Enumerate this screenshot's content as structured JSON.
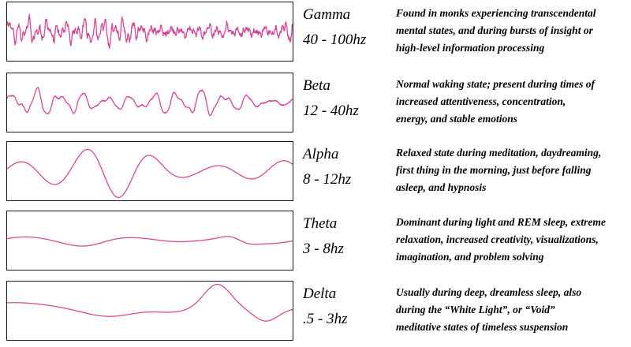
{
  "bands": [
    {
      "name": "Gamma",
      "range": "40 - 100hz",
      "description": [
        "Found in monks experiencing transcendental",
        "mental states, and during bursts of insight or",
        "high-level information processing"
      ]
    },
    {
      "name": "Beta",
      "range": "12 - 40hz",
      "description": [
        "Normal waking state; present during times of",
        "increased attentiveness, concentration,",
        "energy, and stable emotions"
      ]
    },
    {
      "name": "Alpha",
      "range": "8 - 12hz",
      "description": [
        "Relaxed state during meditation, daydreaming,",
        "first thing in the morning, just before falling",
        "asleep, and hypnosis"
      ]
    },
    {
      "name": "Theta",
      "range": "3 - 8hz",
      "description": [
        "Dominant during light and REM sleep, extreme",
        "relaxation, increased creativity, visualizations,",
        "imagination, and problem solving"
      ]
    },
    {
      "name": "Delta",
      "range": ".5 - 3hz",
      "description": [
        "Usually during deep, dreamless sleep, also",
        "during the “White Light”, or “Void”",
        "meditative states of timeless suspension"
      ]
    }
  ],
  "colors": {
    "wave_primary": "#e0409a",
    "wave_secondary": "#6a8a6a",
    "frame": "#1a1a1a"
  }
}
